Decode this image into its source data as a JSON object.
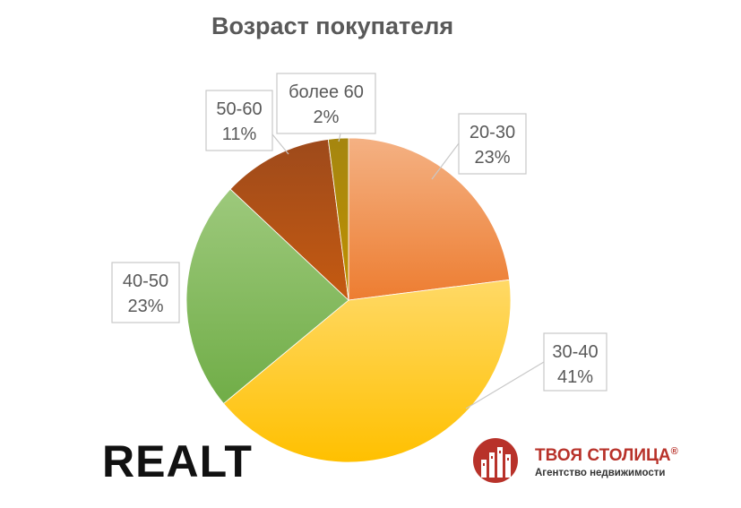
{
  "chart_data": {
    "type": "pie",
    "title": "Возраст покупателя",
    "slices": [
      {
        "label": "20-30",
        "value": 23,
        "value_label": "23%",
        "color": "#ED7D31",
        "color_light": "#F4B183"
      },
      {
        "label": "30-40",
        "value": 41,
        "value_label": "41%",
        "color": "#FFC000",
        "color_light": "#FFD966"
      },
      {
        "label": "40-50",
        "value": 23,
        "value_label": "23%",
        "color": "#70AD47",
        "color_light": "#9DC97C"
      },
      {
        "label": "50-60",
        "value": 11,
        "value_label": "11%",
        "color": "#C55A11",
        "color_light": "#9E4A1B"
      },
      {
        "label": "более 60",
        "value": 2,
        "value_label": "2%",
        "color": "#BF9000",
        "color_light": "#A5860F"
      }
    ],
    "start_angle": "12 o'clock, clockwise"
  },
  "logos": {
    "realt": "REALT",
    "tvoya_stolitsa": {
      "name": "ТВОЯ СТОЛИЦА",
      "registered": "®",
      "subtitle": "Агентство недвижимости",
      "color": "#B8322A"
    }
  }
}
